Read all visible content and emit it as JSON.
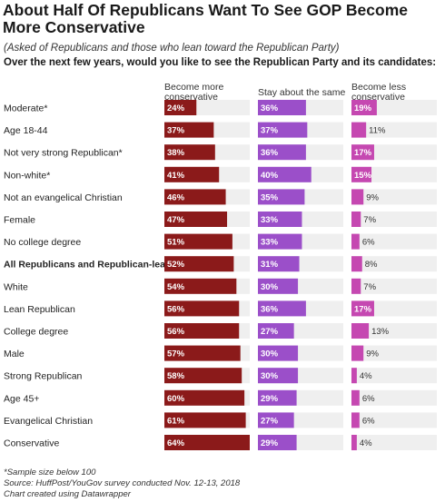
{
  "title": "About Half Of Republicans Want To See GOP Become More Conservative",
  "subtitle": "(Asked of Republicans and those who lean toward the Republican Party)",
  "question": "Over the next few years, would you like to see the Republican Party and its candidates:",
  "notes": {
    "sample": "*Sample size below 100",
    "source": "Source: HuffPost/YouGov survey conducted Nov. 12-13, 2018",
    "credit": "Chart created using Datawrapper"
  },
  "colors": {
    "more_conservative": "#8b1a1a",
    "stay_same": "#9b4fc9",
    "less_conservative": "#c548b1",
    "track": "#efefef"
  },
  "chart_data": {
    "type": "bar",
    "value_suffix": "%",
    "xlim": [
      0,
      64
    ],
    "categories": [
      "Moderate*",
      "Age 18-44",
      "Not very strong Republican*",
      "Non-white*",
      "Not an evangelical Christian",
      "Female",
      "No college degree",
      "All Republicans and Republican-leaners",
      "White",
      "Lean Republican",
      "College degree",
      "Male",
      "Strong Republican",
      "Age 45+",
      "Evangelical Christian",
      "Conservative"
    ],
    "bold_categories": [
      "All Republicans and Republican-leaners"
    ],
    "series": [
      {
        "name": "Become more\nconservative",
        "values": [
          24,
          37,
          38,
          41,
          46,
          47,
          51,
          52,
          54,
          56,
          56,
          57,
          58,
          60,
          61,
          64
        ]
      },
      {
        "name": "Stay about the same",
        "values": [
          36,
          37,
          36,
          40,
          35,
          33,
          33,
          31,
          30,
          36,
          27,
          30,
          30,
          29,
          27,
          29
        ]
      },
      {
        "name": "Become less\nconservative",
        "values": [
          19,
          11,
          17,
          15,
          9,
          7,
          6,
          8,
          7,
          17,
          13,
          9,
          4,
          6,
          6,
          4
        ]
      }
    ]
  }
}
